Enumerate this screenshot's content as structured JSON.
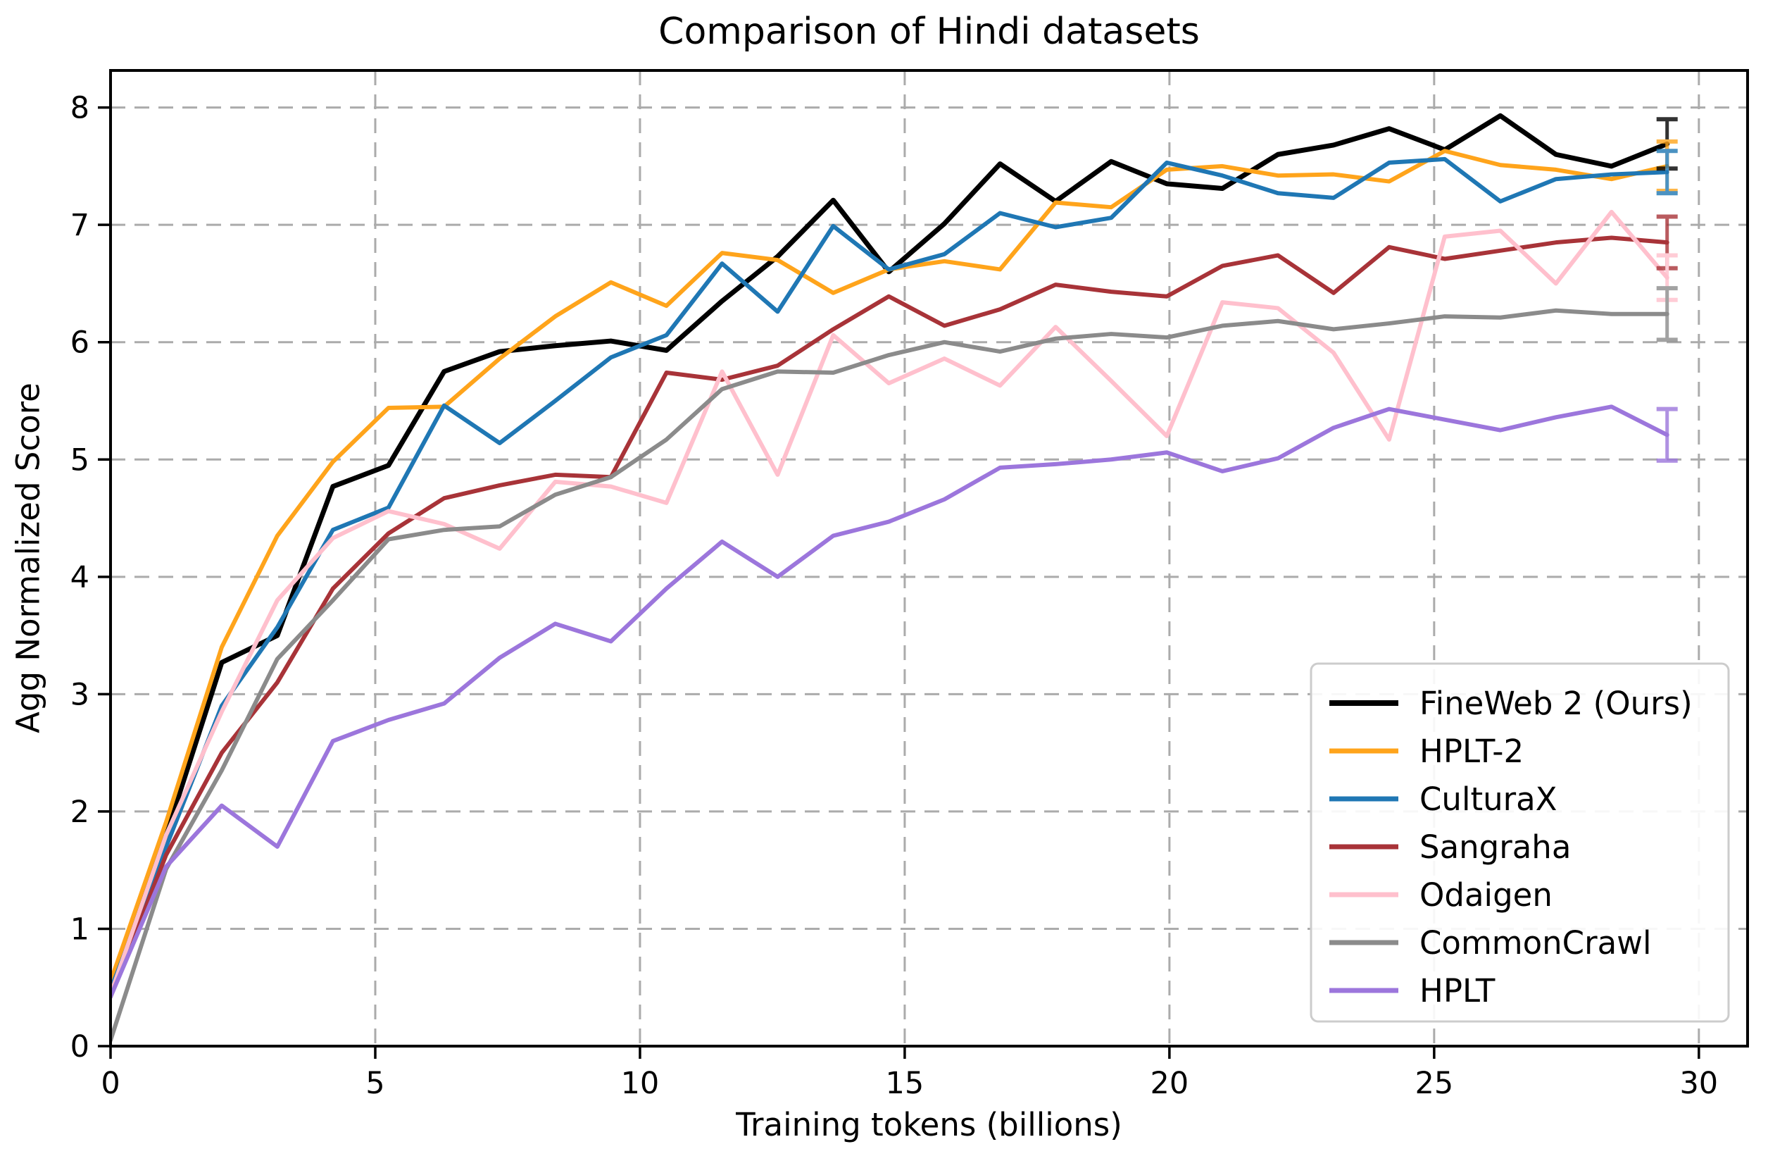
{
  "chart_data": {
    "type": "line",
    "title": "Comparison of Hindi datasets",
    "xlabel": "Training tokens (billions)",
    "ylabel": "Agg Normalized Score",
    "xlim": [
      0,
      30.92
    ],
    "ylim": [
      0,
      8.316
    ],
    "xticks": [
      0,
      5,
      10,
      15,
      20,
      25,
      30
    ],
    "yticks": [
      0,
      1,
      2,
      3,
      4,
      5,
      6,
      7,
      8
    ],
    "grid": true,
    "grid_color": "#ababab",
    "legend_position": "lower right",
    "x": [
      0,
      1.05,
      2.1,
      3.15,
      4.2,
      5.25,
      6.3,
      7.35,
      8.4,
      9.45,
      10.5,
      11.55,
      12.6,
      13.65,
      14.7,
      15.75,
      16.8,
      17.85,
      18.9,
      19.95,
      21.0,
      22.05,
      23.1,
      24.15,
      25.2,
      26.25,
      27.3,
      28.35,
      29.4
    ],
    "series": [
      {
        "name": "FineWeb 2 (Ours)",
        "color": "#000000",
        "linewidth": 7,
        "values": [
          0.45,
          1.8,
          3.27,
          3.5,
          4.77,
          4.95,
          5.75,
          5.92,
          5.97,
          6.01,
          5.93,
          6.35,
          6.73,
          7.21,
          6.6,
          7.01,
          7.52,
          7.2,
          7.54,
          7.35,
          7.31,
          7.6,
          7.68,
          7.82,
          7.64,
          7.93,
          7.6,
          7.5,
          7.69
        ],
        "final_error": 0.21
      },
      {
        "name": "HPLT-2",
        "color": "#FFA41B",
        "linewidth": 6,
        "values": [
          0.55,
          1.91,
          3.4,
          4.35,
          4.98,
          5.44,
          5.45,
          5.86,
          6.22,
          6.51,
          6.31,
          6.76,
          6.7,
          6.42,
          6.62,
          6.69,
          6.62,
          7.19,
          7.15,
          7.47,
          7.5,
          7.42,
          7.43,
          7.37,
          7.63,
          7.51,
          7.47,
          7.39,
          7.5
        ],
        "final_error": 0.21
      },
      {
        "name": "CulturaX",
        "color": "#1F77B4",
        "linewidth": 6,
        "values": [
          0.48,
          1.7,
          2.9,
          3.57,
          4.4,
          4.59,
          5.46,
          5.14,
          5.5,
          5.87,
          6.06,
          6.67,
          6.26,
          6.99,
          6.62,
          6.75,
          7.1,
          6.98,
          7.06,
          7.53,
          7.42,
          7.27,
          7.23,
          7.53,
          7.56,
          7.2,
          7.39,
          7.43,
          7.45
        ],
        "final_error": 0.18
      },
      {
        "name": "Sangraha",
        "color": "#A83338",
        "linewidth": 6,
        "values": [
          0.42,
          1.63,
          2.5,
          3.1,
          3.9,
          4.37,
          4.67,
          4.78,
          4.87,
          4.85,
          5.74,
          5.68,
          5.8,
          6.11,
          6.39,
          6.14,
          6.28,
          6.49,
          6.43,
          6.39,
          6.65,
          6.74,
          6.42,
          6.81,
          6.71,
          6.78,
          6.85,
          6.89,
          6.85
        ],
        "final_error": 0.22
      },
      {
        "name": "Odaigen",
        "color": "#FFC0CD",
        "linewidth": 6,
        "values": [
          0.44,
          1.8,
          2.85,
          3.8,
          4.33,
          4.56,
          4.45,
          4.24,
          4.81,
          4.77,
          4.63,
          5.75,
          4.87,
          6.06,
          5.65,
          5.86,
          5.63,
          6.13,
          5.67,
          5.2,
          6.34,
          6.29,
          5.91,
          5.17,
          6.9,
          6.95,
          6.5,
          7.11,
          6.55
        ],
        "final_error": 0.19
      },
      {
        "name": "CommonCrawl",
        "color": "#8B8B8B",
        "linewidth": 6,
        "values": [
          0.05,
          1.51,
          2.35,
          3.3,
          3.8,
          4.32,
          4.4,
          4.43,
          4.7,
          4.85,
          5.17,
          5.6,
          5.75,
          5.74,
          5.89,
          6.0,
          5.92,
          6.03,
          6.07,
          6.04,
          6.14,
          6.18,
          6.11,
          6.16,
          6.22,
          6.21,
          6.27,
          6.24,
          6.24
        ],
        "final_error": 0.22
      },
      {
        "name": "HPLT",
        "color": "#9C76DC",
        "linewidth": 6,
        "values": [
          0.42,
          1.53,
          2.05,
          1.7,
          2.6,
          2.78,
          2.92,
          3.31,
          3.6,
          3.45,
          3.9,
          4.3,
          4.0,
          4.35,
          4.47,
          4.66,
          4.93,
          4.96,
          5.0,
          5.06,
          4.9,
          5.01,
          5.27,
          5.43,
          5.34,
          5.25,
          5.36,
          5.45,
          5.21
        ],
        "final_error": 0.22
      }
    ]
  }
}
